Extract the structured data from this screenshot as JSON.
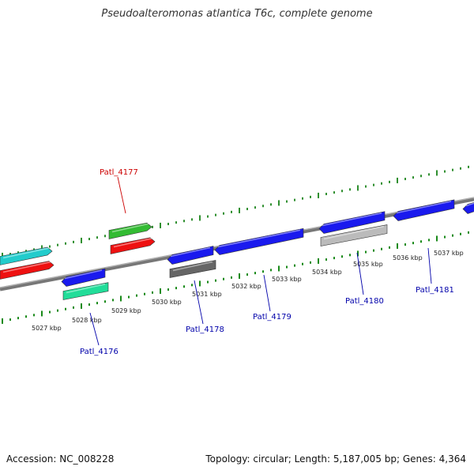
{
  "title": "Pseudoalteromonas atlantica T6c, complete genome",
  "footer": {
    "accession": "Accession: NC_008228",
    "summary": "Topology: circular; Length: 5,187,005 bp; Genes: 4,364"
  },
  "colors": {
    "backbone": "#8a8a8a",
    "forward_ticks": "#2f8f2f",
    "reverse_ticks": "#1a8a1a",
    "label_plus": "#cc0000",
    "label_minus": "#0000aa",
    "cds_blue": "#1a1aee",
    "cds_red": "#ee1111",
    "cds_green": "#33bb33",
    "cds_cyan": "#22cccc",
    "cds_seagreen": "#22dd99",
    "cds_gray": "#666666",
    "cds_lightgray": "#bbbbbb"
  },
  "kbp_labels": [
    "5027 kbp",
    "5028 kbp",
    "5029 kbp",
    "5030 kbp",
    "5031 kbp",
    "5032 kbp",
    "5033 kbp",
    "5034 kbp",
    "5035 kbp",
    "5036 kbp",
    "5037 kbp"
  ],
  "gene_labels": [
    {
      "id": "Patl_4176",
      "strand": "minus"
    },
    {
      "id": "Patl_4177",
      "strand": "plus"
    },
    {
      "id": "Patl_4178",
      "strand": "minus"
    },
    {
      "id": "Patl_4179",
      "strand": "minus"
    },
    {
      "id": "Patl_4180",
      "strand": "minus"
    },
    {
      "id": "Patl_4181",
      "strand": "minus"
    }
  ]
}
